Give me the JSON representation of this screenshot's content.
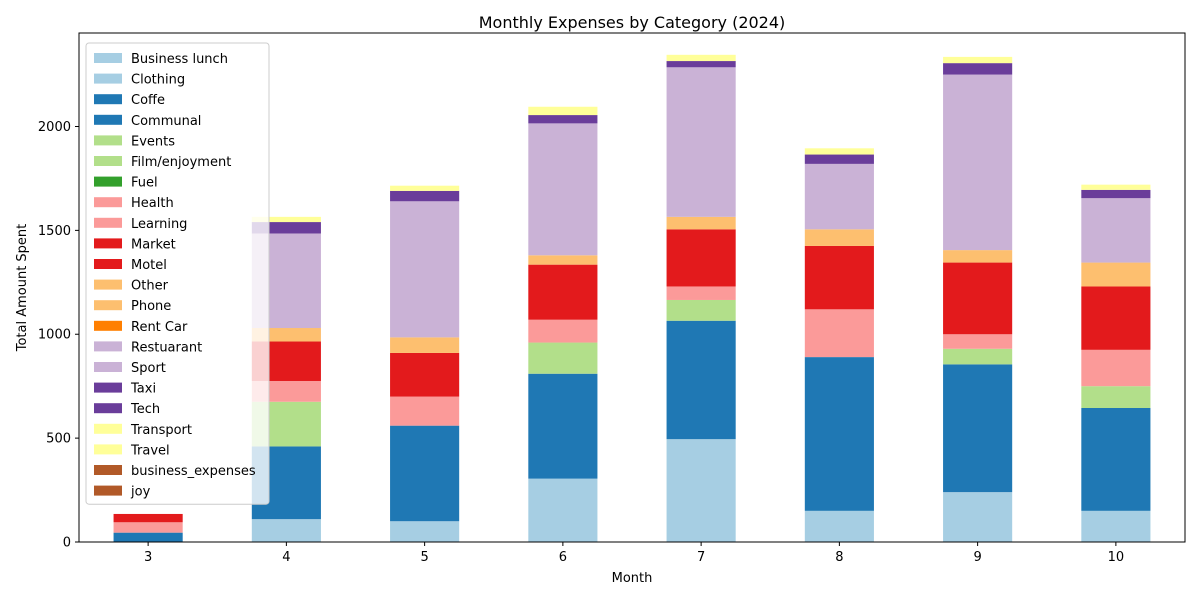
{
  "chart_data": {
    "type": "bar",
    "stacked": true,
    "title": "Monthly Expenses by Category (2024)",
    "xlabel": "Month",
    "ylabel": "Total Amount Spent",
    "categories": [
      "3",
      "4",
      "5",
      "6",
      "7",
      "8",
      "9",
      "10"
    ],
    "ylim": [
      0,
      2450
    ],
    "yticks": [
      0,
      500,
      1000,
      1500,
      2000
    ],
    "legend_position": "upper-left",
    "grid": false,
    "series": [
      {
        "name": "Business lunch",
        "color": "#a6cee3",
        "values": [
          0,
          110,
          100,
          305,
          495,
          150,
          240,
          150
        ]
      },
      {
        "name": "Clothing",
        "color": "#a6cee3",
        "values": [
          0,
          0,
          0,
          0,
          0,
          0,
          0,
          0
        ]
      },
      {
        "name": "Coffe",
        "color": "#1f78b4",
        "values": [
          45,
          0,
          0,
          0,
          0,
          0,
          0,
          0
        ]
      },
      {
        "name": "Communal",
        "color": "#1f78b4",
        "values": [
          0,
          350,
          460,
          505,
          570,
          740,
          615,
          495
        ]
      },
      {
        "name": "Events",
        "color": "#b2df8a",
        "values": [
          0,
          0,
          0,
          0,
          0,
          0,
          0,
          0
        ]
      },
      {
        "name": "Film/enjoyment",
        "color": "#b2df8a",
        "values": [
          0,
          215,
          0,
          150,
          100,
          0,
          75,
          105
        ]
      },
      {
        "name": "Fuel",
        "color": "#33a02c",
        "values": [
          0,
          0,
          0,
          0,
          0,
          0,
          0,
          0
        ]
      },
      {
        "name": "Health",
        "color": "#fb9a99",
        "values": [
          0,
          0,
          0,
          0,
          0,
          0,
          0,
          0
        ]
      },
      {
        "name": "Learning",
        "color": "#fb9a99",
        "values": [
          50,
          100,
          140,
          110,
          65,
          230,
          70,
          175
        ]
      },
      {
        "name": "Market",
        "color": "#e31a1c",
        "values": [
          0,
          0,
          0,
          0,
          0,
          0,
          0,
          0
        ]
      },
      {
        "name": "Motel",
        "color": "#e31a1c",
        "values": [
          40,
          190,
          210,
          265,
          275,
          305,
          345,
          305
        ]
      },
      {
        "name": "Other",
        "color": "#fdbf6f",
        "values": [
          0,
          0,
          0,
          0,
          0,
          0,
          0,
          0
        ]
      },
      {
        "name": "Phone",
        "color": "#fdbf6f",
        "values": [
          0,
          65,
          75,
          45,
          60,
          80,
          60,
          115
        ]
      },
      {
        "name": "Rent Car",
        "color": "#ff7f00",
        "values": [
          0,
          0,
          0,
          0,
          0,
          0,
          0,
          0
        ]
      },
      {
        "name": "Restuarant",
        "color": "#cab2d6",
        "values": [
          0,
          0,
          0,
          0,
          0,
          0,
          0,
          0
        ]
      },
      {
        "name": "Sport",
        "color": "#cab2d6",
        "values": [
          0,
          455,
          655,
          635,
          720,
          315,
          845,
          310
        ]
      },
      {
        "name": "Taxi",
        "color": "#6a3d9a",
        "values": [
          0,
          0,
          0,
          0,
          0,
          0,
          0,
          0
        ]
      },
      {
        "name": "Tech",
        "color": "#6a3d9a",
        "values": [
          0,
          55,
          50,
          40,
          30,
          45,
          55,
          40
        ]
      },
      {
        "name": "Transport",
        "color": "#ffff99",
        "values": [
          0,
          0,
          0,
          0,
          0,
          0,
          0,
          0
        ]
      },
      {
        "name": "Travel",
        "color": "#ffff99",
        "values": [
          0,
          25,
          25,
          40,
          30,
          30,
          30,
          25
        ]
      },
      {
        "name": "business_expenses",
        "color": "#b15928",
        "values": [
          0,
          0,
          0,
          0,
          0,
          0,
          0,
          0
        ]
      },
      {
        "name": "joy",
        "color": "#b15928",
        "values": [
          0,
          0,
          0,
          0,
          0,
          0,
          0,
          0
        ]
      }
    ]
  }
}
